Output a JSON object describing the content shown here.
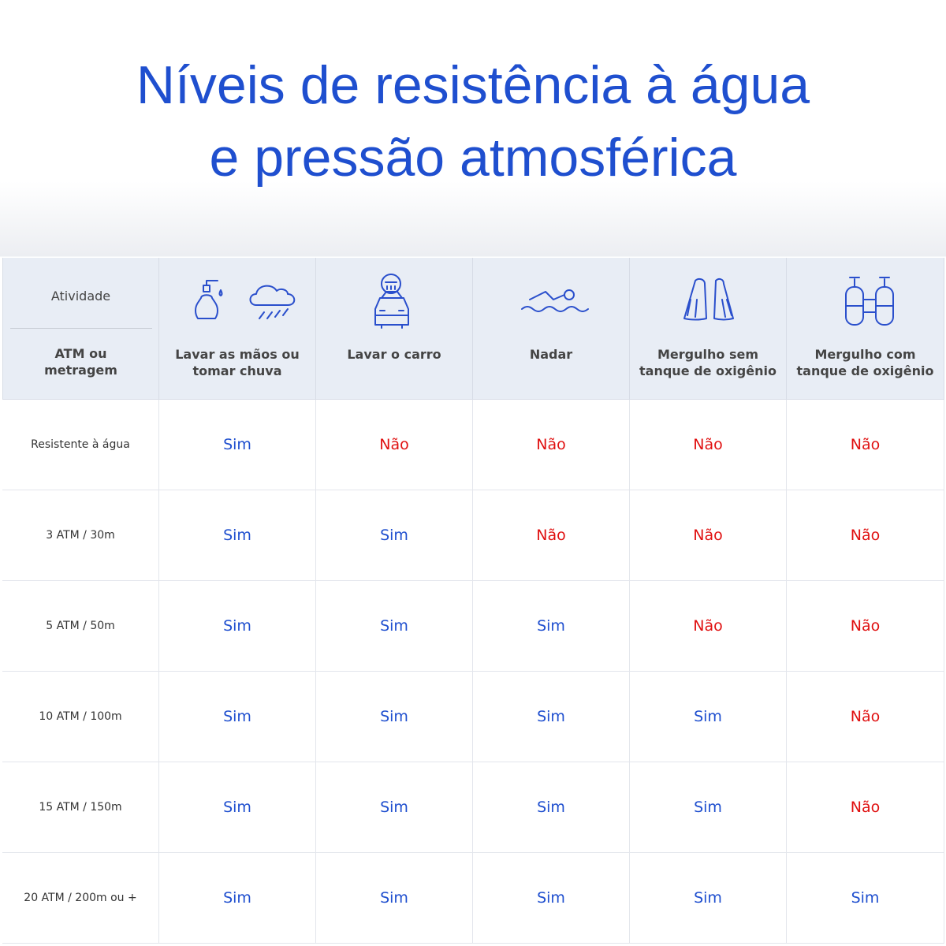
{
  "title": [
    "Níveis de resistência à água",
    "e pressão atmosférica"
  ],
  "table": {
    "corner": [
      "Atividade",
      "ATM ou metragem"
    ],
    "columns": [
      "Lavar as mãos ou tomar chuva",
      "Lavar o carro",
      "Nadar",
      "Mergulho sem tanque de oxigênio",
      "Mergulho com tanque de oxigênio"
    ],
    "rows": [
      {
        "label": "Resistente à água",
        "cells": [
          "Sim",
          "Não",
          "Não",
          "Não",
          "Não"
        ]
      },
      {
        "label": "3 ATM / 30m",
        "cells": [
          "Sim",
          "Sim",
          "Não",
          "Não",
          "Não"
        ]
      },
      {
        "label": "5 ATM / 50m",
        "cells": [
          "Sim",
          "Sim",
          "Sim",
          "Não",
          "Não"
        ]
      },
      {
        "label": "10 ATM / 100m",
        "cells": [
          "Sim",
          "Sim",
          "Sim",
          "Sim",
          "Não"
        ]
      },
      {
        "label": "15 ATM / 150m",
        "cells": [
          "Sim",
          "Sim",
          "Sim",
          "Sim",
          "Não"
        ]
      },
      {
        "label": "20 ATM / 200m ou +",
        "cells": [
          "Sim",
          "Sim",
          "Sim",
          "Sim",
          "Sim"
        ]
      }
    ],
    "answer_colors": {
      "Sim": "#1f4fcf",
      "Não": "#e01010"
    }
  }
}
